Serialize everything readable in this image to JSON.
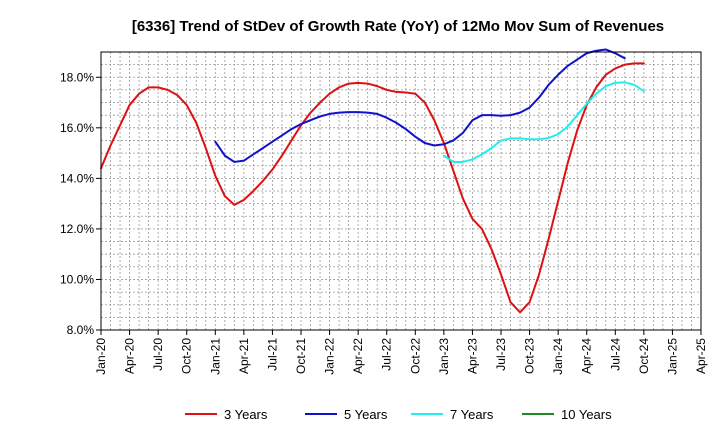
{
  "chart_data": {
    "type": "line",
    "title": "[6336]  Trend of StDev of Growth Rate (YoY) of 12Mo Mov Sum of Revenues",
    "xlabel": "",
    "ylabel": "",
    "ylim": [
      8.0,
      19.0
    ],
    "y_ticks": [
      "8.0%",
      "10.0%",
      "12.0%",
      "14.0%",
      "16.0%",
      "18.0%"
    ],
    "y_tick_values": [
      8,
      10,
      12,
      14,
      16,
      18
    ],
    "x_ticks": [
      "Jan-20",
      "Apr-20",
      "Jul-20",
      "Oct-20",
      "Jan-21",
      "Apr-21",
      "Jul-21",
      "Oct-21",
      "Jan-22",
      "Apr-22",
      "Jul-22",
      "Oct-22",
      "Jan-23",
      "Apr-23",
      "Jul-23",
      "Oct-23",
      "Jan-24",
      "Apr-24",
      "Jul-24",
      "Oct-24",
      "Jan-25",
      "Apr-25"
    ],
    "x_range_months": [
      0,
      63
    ],
    "grid": true,
    "legend_position": "bottom",
    "series": [
      {
        "name": "3 Years",
        "color": "#dd1111",
        "start_month": 0,
        "values": [
          14.4,
          15.3,
          16.1,
          16.9,
          17.35,
          17.6,
          17.6,
          17.5,
          17.3,
          16.9,
          16.2,
          15.2,
          14.1,
          13.3,
          12.95,
          13.15,
          13.5,
          13.9,
          14.35,
          14.9,
          15.5,
          16.1,
          16.6,
          17.0,
          17.35,
          17.6,
          17.75,
          17.78,
          17.75,
          17.65,
          17.5,
          17.42,
          17.4,
          17.35,
          17.0,
          16.3,
          15.4,
          14.3,
          13.2,
          12.4,
          12.0,
          11.2,
          10.2,
          9.1,
          8.7,
          9.1,
          10.2,
          11.6,
          13.1,
          14.6,
          15.9,
          16.9,
          17.6,
          18.1,
          18.35,
          18.5,
          18.55,
          18.55
        ]
      },
      {
        "name": "5 Years",
        "color": "#1111cc",
        "start_month": 12,
        "values": [
          15.45,
          14.9,
          14.65,
          14.7,
          14.95,
          15.2,
          15.45,
          15.7,
          15.95,
          16.15,
          16.3,
          16.45,
          16.55,
          16.6,
          16.62,
          16.62,
          16.6,
          16.55,
          16.4,
          16.2,
          15.95,
          15.65,
          15.4,
          15.3,
          15.35,
          15.5,
          15.8,
          16.3,
          16.5,
          16.5,
          16.48,
          16.5,
          16.6,
          16.8,
          17.2,
          17.7,
          18.1,
          18.45,
          18.7,
          18.95,
          19.05,
          19.1,
          18.95,
          18.75
        ]
      },
      {
        "name": "7 Years",
        "color": "#22eeee",
        "start_month": 36,
        "values": [
          14.9,
          14.65,
          14.65,
          14.75,
          14.95,
          15.2,
          15.5,
          15.58,
          15.58,
          15.55,
          15.55,
          15.6,
          15.75,
          16.05,
          16.5,
          16.95,
          17.35,
          17.65,
          17.78,
          17.8,
          17.7,
          17.45
        ]
      },
      {
        "name": "10 Years",
        "color": "#228822",
        "start_month": 0,
        "values": []
      }
    ]
  }
}
